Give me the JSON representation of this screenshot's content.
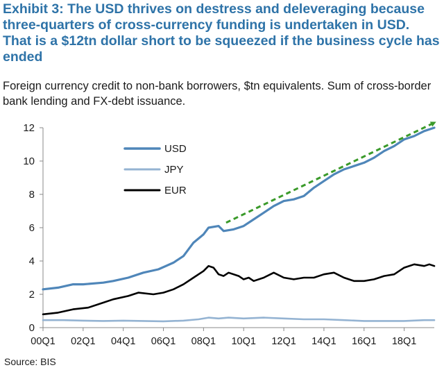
{
  "title": "Exhibit 3: The USD thrives on destress and deleveraging because three-quarters of cross-currency funding is undertaken in USD. That is a $12tn dollar short to be squeezed if the business cycle has ended",
  "subtitle": "Foreign currency credit to non-bank borrowers, $tn equivalents. Sum of cross-border bank lending and FX-debt issuance.",
  "source": "Source: BIS",
  "colors": {
    "title": "#2e73a8",
    "usd": "#4f86b9",
    "jpy": "#94b3d2",
    "eur": "#000000",
    "trend": "#3a9a2a",
    "axis": "#888888"
  },
  "chart_data": {
    "type": "line",
    "title": "Foreign currency credit to non-bank borrowers, $tn equivalents",
    "xlabel": "",
    "ylabel": "",
    "ylim": [
      0,
      12
    ],
    "yticks": [
      "0",
      "2",
      "4",
      "6",
      "8",
      "10",
      "12"
    ],
    "xlim": [
      0,
      78
    ],
    "xticks": [
      {
        "q": 0,
        "label": "00Q1"
      },
      {
        "q": 8,
        "label": "02Q1"
      },
      {
        "q": 16,
        "label": "04Q1"
      },
      {
        "q": 24,
        "label": "06Q1"
      },
      {
        "q": 32,
        "label": "08Q1"
      },
      {
        "q": 40,
        "label": "10Q1"
      },
      {
        "q": 48,
        "label": "12Q1"
      },
      {
        "q": 56,
        "label": "14Q1"
      },
      {
        "q": 64,
        "label": "16Q1"
      },
      {
        "q": 72,
        "label": "18Q1"
      }
    ],
    "legend_position": "upper-left",
    "series": [
      {
        "name": "USD",
        "points": [
          [
            0,
            2.3
          ],
          [
            3,
            2.4
          ],
          [
            6,
            2.6
          ],
          [
            8,
            2.6
          ],
          [
            12,
            2.7
          ],
          [
            14,
            2.8
          ],
          [
            17,
            3.0
          ],
          [
            20,
            3.3
          ],
          [
            23,
            3.5
          ],
          [
            26,
            3.9
          ],
          [
            28,
            4.3
          ],
          [
            30,
            5.1
          ],
          [
            32,
            5.6
          ],
          [
            33,
            6.0
          ],
          [
            35,
            6.1
          ],
          [
            36,
            5.8
          ],
          [
            38,
            5.9
          ],
          [
            40,
            6.1
          ],
          [
            42,
            6.5
          ],
          [
            44,
            6.9
          ],
          [
            46,
            7.3
          ],
          [
            48,
            7.6
          ],
          [
            50,
            7.7
          ],
          [
            52,
            7.9
          ],
          [
            54,
            8.4
          ],
          [
            56,
            8.8
          ],
          [
            58,
            9.2
          ],
          [
            60,
            9.5
          ],
          [
            62,
            9.7
          ],
          [
            64,
            9.9
          ],
          [
            66,
            10.2
          ],
          [
            68,
            10.6
          ],
          [
            70,
            10.9
          ],
          [
            72,
            11.3
          ],
          [
            74,
            11.5
          ],
          [
            76,
            11.8
          ],
          [
            78,
            12.0
          ]
        ]
      },
      {
        "name": "JPY",
        "points": [
          [
            0,
            0.45
          ],
          [
            4,
            0.45
          ],
          [
            8,
            0.42
          ],
          [
            12,
            0.4
          ],
          [
            16,
            0.42
          ],
          [
            20,
            0.4
          ],
          [
            24,
            0.38
          ],
          [
            28,
            0.42
          ],
          [
            31,
            0.5
          ],
          [
            33,
            0.6
          ],
          [
            35,
            0.55
          ],
          [
            37,
            0.6
          ],
          [
            40,
            0.55
          ],
          [
            44,
            0.6
          ],
          [
            48,
            0.55
          ],
          [
            52,
            0.5
          ],
          [
            56,
            0.5
          ],
          [
            60,
            0.45
          ],
          [
            64,
            0.4
          ],
          [
            68,
            0.4
          ],
          [
            72,
            0.4
          ],
          [
            76,
            0.45
          ],
          [
            78,
            0.45
          ]
        ]
      },
      {
        "name": "EUR",
        "points": [
          [
            0,
            0.8
          ],
          [
            3,
            0.9
          ],
          [
            6,
            1.1
          ],
          [
            9,
            1.2
          ],
          [
            12,
            1.5
          ],
          [
            14,
            1.7
          ],
          [
            17,
            1.9
          ],
          [
            19,
            2.1
          ],
          [
            22,
            2.0
          ],
          [
            24,
            2.1
          ],
          [
            26,
            2.3
          ],
          [
            28,
            2.6
          ],
          [
            30,
            3.0
          ],
          [
            32,
            3.4
          ],
          [
            33,
            3.7
          ],
          [
            34,
            3.6
          ],
          [
            35,
            3.2
          ],
          [
            36,
            3.1
          ],
          [
            37,
            3.3
          ],
          [
            39,
            3.1
          ],
          [
            40,
            2.9
          ],
          [
            41,
            3.0
          ],
          [
            42,
            2.8
          ],
          [
            44,
            3.0
          ],
          [
            46,
            3.3
          ],
          [
            48,
            3.0
          ],
          [
            50,
            2.9
          ],
          [
            52,
            3.0
          ],
          [
            54,
            3.0
          ],
          [
            56,
            3.2
          ],
          [
            58,
            3.3
          ],
          [
            60,
            3.0
          ],
          [
            62,
            2.8
          ],
          [
            64,
            2.8
          ],
          [
            66,
            2.9
          ],
          [
            68,
            3.1
          ],
          [
            70,
            3.2
          ],
          [
            72,
            3.6
          ],
          [
            74,
            3.8
          ],
          [
            76,
            3.7
          ],
          [
            77,
            3.8
          ],
          [
            78,
            3.7
          ]
        ]
      }
    ],
    "annotations": [
      {
        "type": "trend-arrow",
        "from": [
          36.5,
          6.3
        ],
        "to": [
          78,
          12.3
        ],
        "style": "dashed",
        "color": "green"
      }
    ]
  }
}
